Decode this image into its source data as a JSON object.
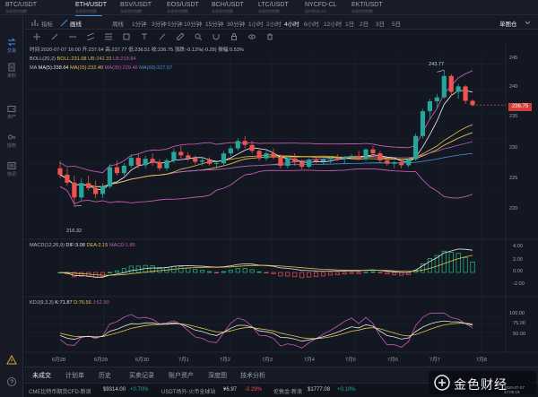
{
  "tickers": [
    {
      "symbol": "BTC/USDT",
      "sub": "永续合约指数"
    },
    {
      "symbol": "ETH/USDT",
      "sub": "永续合约指数"
    },
    {
      "symbol": "BSV/USDT",
      "sub": "永续合约指数"
    },
    {
      "symbol": "EOS/USDT",
      "sub": "永续合约指数"
    },
    {
      "symbol": "BCH/USDT",
      "sub": "永续合约指数"
    },
    {
      "symbol": "LTC/USDT",
      "sub": "永续合约指数"
    },
    {
      "symbol": "NYCFD-CL",
      "sub": "纽约原油CFD"
    },
    {
      "symbol": "EKT/USDT",
      "sub": "永续合约指数"
    }
  ],
  "sidebar": [
    {
      "label": "交易",
      "icon": "exchange-icon"
    },
    {
      "label": "资料",
      "icon": "document-icon"
    },
    {
      "label": "资产",
      "icon": "wallet-icon"
    },
    {
      "label": "授权",
      "icon": "key-icon"
    },
    {
      "label": "快讯",
      "icon": "news-icon"
    }
  ],
  "toolbar": {
    "indicator": "指标",
    "draw": "画线",
    "periods": [
      "周线",
      "1分钟",
      "3分钟",
      "5分钟",
      "10分钟",
      "15分钟",
      "30分钟",
      "1小时",
      "2小时",
      "4小时",
      "6小时",
      "12小时",
      "1日",
      "2日",
      "3日",
      "5日"
    ],
    "active_period": "4小时",
    "mode": "单图仓"
  },
  "chart_info": {
    "time_line": "时间:2020-07-07 16:00  开:237.64  高:237.77  低:236.51  收:236.75  涨跌:-0.12%(-0.28)  振幅:0.53%",
    "boll_line": {
      "name": "BOLL(20,2)",
      "boll": "BOLL:231.08",
      "ub": "UB:242.33",
      "lb": "LB:219.84"
    },
    "ma_line": {
      "name": "MA",
      "ma5": "MA(5):238.64",
      "ma15": "MA(15):232.40",
      "ma30": "MA(30):229.46",
      "ma60": "MA(60):227.57"
    },
    "macd_line": {
      "name": "MACD(12,26,9)",
      "dif": "DIF:3.08",
      "dea": "DEA:2.15",
      "macd": "MACD:1.85"
    },
    "kdj_line": {
      "name": "KDJ(9,3,3)",
      "k": "K:71.87",
      "d": "D:76.56",
      "j": "J:62.50"
    },
    "high_label": "243.77",
    "low_label": "216.32",
    "last_price": "236.75"
  },
  "colors": {
    "up": "#26a69a",
    "down": "#ef5350",
    "boll_mid": "#e6c24a",
    "boll_band": "#c45ab0",
    "ma5": "#f2f2f2",
    "ma15": "#e6c24a",
    "ma30": "#c45ab0",
    "ma60": "#4c8fd6",
    "macd_hist": "#26c281",
    "accent": "#4a90e2"
  },
  "chart_data": {
    "type": "candlestick",
    "x_ticks": [
      "6月28",
      "6月29",
      "6月30",
      "7月1",
      "7月2",
      "7月3",
      "7月4",
      "7月5",
      "7月6",
      "7月7",
      "7月8"
    ],
    "price_ticks": [
      245,
      240,
      235,
      230,
      225,
      220
    ],
    "macd_ticks": [
      "4.00",
      "2.00",
      "0.00",
      "-2.00"
    ],
    "kdj_ticks": [
      "100.00",
      "75.00",
      "50.00"
    ],
    "ylim_price": [
      216,
      246
    ],
    "candles": [
      [
        224.0,
        225.5,
        222.0,
        222.7
      ],
      [
        222.7,
        224.0,
        220.5,
        221.1
      ],
      [
        221.1,
        222.5,
        216.3,
        218.1
      ],
      [
        218.1,
        222.0,
        217.5,
        221.0
      ],
      [
        221.0,
        222.5,
        219.5,
        220.0
      ],
      [
        220.0,
        221.5,
        218.0,
        218.8
      ],
      [
        218.8,
        221.0,
        218.0,
        220.3
      ],
      [
        220.3,
        224.8,
        220.0,
        224.2
      ],
      [
        224.2,
        225.5,
        222.5,
        223.0
      ],
      [
        223.0,
        225.0,
        222.5,
        224.5
      ],
      [
        224.5,
        226.8,
        224.0,
        226.1
      ],
      [
        226.1,
        227.0,
        224.0,
        224.6
      ],
      [
        224.6,
        226.5,
        224.0,
        225.9
      ],
      [
        225.9,
        227.0,
        224.5,
        225.2
      ],
      [
        225.2,
        225.8,
        223.5,
        224.0
      ],
      [
        224.0,
        226.0,
        223.5,
        225.6
      ],
      [
        225.6,
        228.0,
        225.0,
        227.3
      ],
      [
        227.3,
        228.5,
        226.0,
        226.6
      ],
      [
        226.6,
        227.2,
        225.5,
        226.0
      ],
      [
        226.0,
        226.5,
        224.8,
        225.3
      ],
      [
        225.3,
        226.0,
        224.5,
        225.6
      ],
      [
        225.6,
        226.2,
        224.5,
        224.9
      ],
      [
        224.9,
        225.5,
        224.0,
        225.0
      ],
      [
        225.0,
        227.5,
        224.5,
        227.0
      ],
      [
        227.0,
        228.5,
        226.5,
        228.0
      ],
      [
        228.0,
        230.0,
        227.5,
        229.5
      ],
      [
        229.5,
        230.5,
        228.0,
        228.7
      ],
      [
        228.7,
        229.5,
        227.0,
        227.5
      ],
      [
        227.5,
        228.0,
        225.5,
        226.0
      ],
      [
        226.0,
        227.5,
        225.5,
        227.0
      ],
      [
        227.0,
        228.0,
        225.8,
        226.3
      ],
      [
        226.3,
        226.8,
        224.0,
        224.5
      ],
      [
        224.5,
        226.5,
        224.0,
        226.0
      ],
      [
        226.0,
        227.0,
        224.5,
        225.2
      ],
      [
        225.2,
        225.8,
        223.8,
        224.3
      ],
      [
        224.3,
        226.0,
        224.0,
        225.7
      ],
      [
        225.7,
        226.5,
        225.0,
        225.4
      ],
      [
        225.4,
        226.0,
        224.8,
        225.8
      ],
      [
        225.8,
        226.5,
        225.0,
        226.1
      ],
      [
        226.1,
        226.8,
        225.5,
        225.9
      ],
      [
        225.9,
        226.5,
        225.0,
        226.3
      ],
      [
        226.3,
        226.9,
        225.8,
        226.5
      ],
      [
        226.5,
        227.5,
        226.0,
        225.9
      ],
      [
        225.9,
        228.0,
        225.5,
        227.8
      ],
      [
        227.8,
        228.5,
        226.8,
        227.0
      ],
      [
        227.0,
        227.5,
        225.0,
        225.6
      ],
      [
        225.6,
        226.0,
        224.5,
        224.9
      ],
      [
        224.9,
        225.5,
        224.0,
        225.2
      ],
      [
        225.2,
        225.8,
        224.0,
        224.6
      ],
      [
        224.6,
        226.0,
        224.2,
        225.8
      ],
      [
        225.8,
        231.0,
        225.5,
        230.5
      ],
      [
        230.5,
        236.0,
        230.0,
        235.5
      ],
      [
        235.5,
        238.0,
        234.0,
        237.5
      ],
      [
        237.5,
        239.0,
        236.0,
        238.3
      ],
      [
        238.3,
        243.8,
        238.0,
        242.6
      ],
      [
        242.6,
        243.0,
        238.5,
        239.4
      ],
      [
        239.4,
        241.0,
        238.0,
        240.5
      ],
      [
        240.5,
        240.8,
        237.0,
        237.6
      ],
      [
        237.6,
        237.8,
        236.5,
        236.75
      ]
    ],
    "series": [
      {
        "name": "MA(5)",
        "last": 238.64
      },
      {
        "name": "MA(15)",
        "last": 232.4
      },
      {
        "name": "MA(30)",
        "last": 229.46
      },
      {
        "name": "MA(60)",
        "last": 227.57
      }
    ]
  },
  "bottom_tabs": [
    "未成交",
    "计划单",
    "历史",
    "买卖记录",
    "账户资产",
    "深度图",
    "技术分析"
  ],
  "active_bottom_tab": "未成交",
  "status": [
    {
      "name": "CME比特币期货CFD-新浪",
      "price": "$9314.00",
      "chg": "+0.70%",
      "dir": "up"
    },
    {
      "name": "USDT场外-火币全球站",
      "price": "¥6.97",
      "chg": "-0.29%",
      "dir": "down"
    },
    {
      "name": "伦敦金-新浪",
      "price": "$1777.08",
      "chg": "+0.10%",
      "dir": "up"
    }
  ],
  "logo": {
    "text": "金色财经",
    "time": "2020-07-07 17:00:19"
  }
}
